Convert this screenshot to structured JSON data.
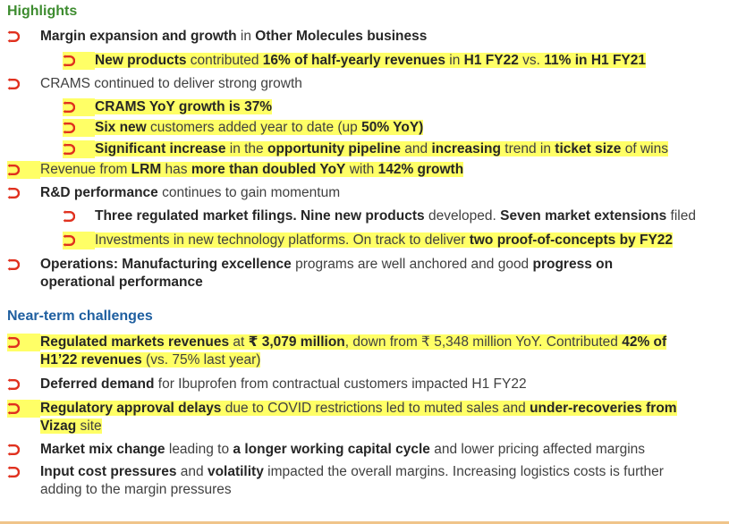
{
  "colors": {
    "highlights_heading": "#3d8c2f",
    "challenges_heading": "#1f5fa0",
    "bullet": "#e0301e",
    "highlight": "#ffff66"
  },
  "bullet_icon": "curved-arrow-bullet-icon",
  "highlights": {
    "heading": "Highlights",
    "items": [
      {
        "level": 1,
        "highlighted": false,
        "segments": [
          {
            "t": "Margin expansion and growth",
            "b": true
          },
          {
            "t": " in ",
            "b": false
          },
          {
            "t": "Other Molecules business",
            "b": true
          }
        ]
      },
      {
        "level": 2,
        "highlighted": true,
        "segments": [
          {
            "t": "New products",
            "b": true
          },
          {
            "t": " contributed ",
            "b": false
          },
          {
            "t": "16% of half-yearly revenues",
            "b": true
          },
          {
            "t": " in ",
            "b": false
          },
          {
            "t": "H1 FY22",
            "b": true
          },
          {
            "t": " vs. ",
            "b": false
          },
          {
            "t": "11% in H1 FY21",
            "b": true
          }
        ]
      },
      {
        "level": 1,
        "highlighted": false,
        "segments": [
          {
            "t": "CRAMS continued to deliver strong growth",
            "b": false
          }
        ]
      },
      {
        "level": 2,
        "highlighted": true,
        "segments": [
          {
            "t": "CRAMS YoY growth is 37%",
            "b": true
          }
        ]
      },
      {
        "level": 2,
        "highlighted": true,
        "segments": [
          {
            "t": "Six new",
            "b": true
          },
          {
            "t": " customers added year to date (up ",
            "b": false
          },
          {
            "t": "50% YoY)",
            "b": true
          }
        ]
      },
      {
        "level": 2,
        "highlighted": true,
        "segments": [
          {
            "t": "Significant increase",
            "b": true
          },
          {
            "t": " in the ",
            "b": false
          },
          {
            "t": "opportunity pipeline",
            "b": true
          },
          {
            "t": " and ",
            "b": false
          },
          {
            "t": "increasing",
            "b": true
          },
          {
            "t": " trend in ",
            "b": false
          },
          {
            "t": "ticket size",
            "b": true
          },
          {
            "t": " of wins",
            "b": false
          }
        ]
      },
      {
        "level": 1,
        "highlighted": true,
        "segments": [
          {
            "t": "Revenue from ",
            "b": false
          },
          {
            "t": "LRM",
            "b": true
          },
          {
            "t": " has ",
            "b": false
          },
          {
            "t": "more than doubled YoY",
            "b": true
          },
          {
            "t": " with ",
            "b": false
          },
          {
            "t": "142% growth",
            "b": true
          }
        ]
      },
      {
        "level": 1,
        "highlighted": false,
        "segments": [
          {
            "t": "R&D performance",
            "b": true
          },
          {
            "t": " continues to gain momentum",
            "b": false
          }
        ]
      },
      {
        "level": 2,
        "highlighted": false,
        "segments": [
          {
            "t": "Three regulated market filings. Nine new products",
            "b": true
          },
          {
            "t": " developed. ",
            "b": false
          },
          {
            "t": "Seven market extensions",
            "b": true
          },
          {
            "t": " filed",
            "b": false
          }
        ]
      },
      {
        "level": 2,
        "highlighted": true,
        "segments": [
          {
            "t": "Investments in new technology platforms. On track to deliver ",
            "b": false
          },
          {
            "t": "two proof-of-concepts by FY22",
            "b": true
          }
        ]
      },
      {
        "level": 1,
        "highlighted": false,
        "wrap": true,
        "segments": [
          {
            "t": "Operations: Manufacturing excellence",
            "b": true
          },
          {
            "t": " programs are well anchored and good ",
            "b": false
          },
          {
            "t": "progress on operational performance",
            "b": true
          }
        ]
      }
    ]
  },
  "challenges": {
    "heading": "Near-term challenges",
    "items": [
      {
        "level": 1,
        "highlighted": true,
        "wrap": true,
        "segments": [
          {
            "t": "Regulated markets revenues",
            "b": true
          },
          {
            "t": " at ",
            "b": false
          },
          {
            "t": "₹ 3,079 million",
            "b": true
          },
          {
            "t": ", down from ₹ 5,348 million YoY. Contributed ",
            "b": false
          },
          {
            "t": "42% of H1’22 revenues",
            "b": true
          },
          {
            "t": " (vs. 75% last year)",
            "b": false
          }
        ]
      },
      {
        "level": 1,
        "highlighted": false,
        "segments": [
          {
            "t": "Deferred demand",
            "b": true
          },
          {
            "t": " for Ibuprofen from contractual customers impacted H1 FY22",
            "b": false
          }
        ]
      },
      {
        "level": 1,
        "highlighted": true,
        "wrap": true,
        "segments": [
          {
            "t": "Regulatory approval delays",
            "b": true
          },
          {
            "t": " due to COVID restrictions led to muted sales and ",
            "b": false
          },
          {
            "t": "under-recoveries from Vizag",
            "b": true
          },
          {
            "t": " site",
            "b": false
          }
        ]
      },
      {
        "level": 1,
        "highlighted": false,
        "segments": [
          {
            "t": "Market mix change",
            "b": true
          },
          {
            "t": " leading to ",
            "b": false
          },
          {
            "t": "a longer working capital cycle",
            "b": true
          },
          {
            "t": " and lower pricing affected margins",
            "b": false
          }
        ]
      },
      {
        "level": 1,
        "highlighted": false,
        "wrap": true,
        "segments": [
          {
            "t": "Input cost pressures",
            "b": true
          },
          {
            "t": " and ",
            "b": false
          },
          {
            "t": "volatility",
            "b": true
          },
          {
            "t": " impacted the overall margins. Increasing logistics costs is further adding to the margin pressures",
            "b": false
          }
        ]
      }
    ]
  }
}
